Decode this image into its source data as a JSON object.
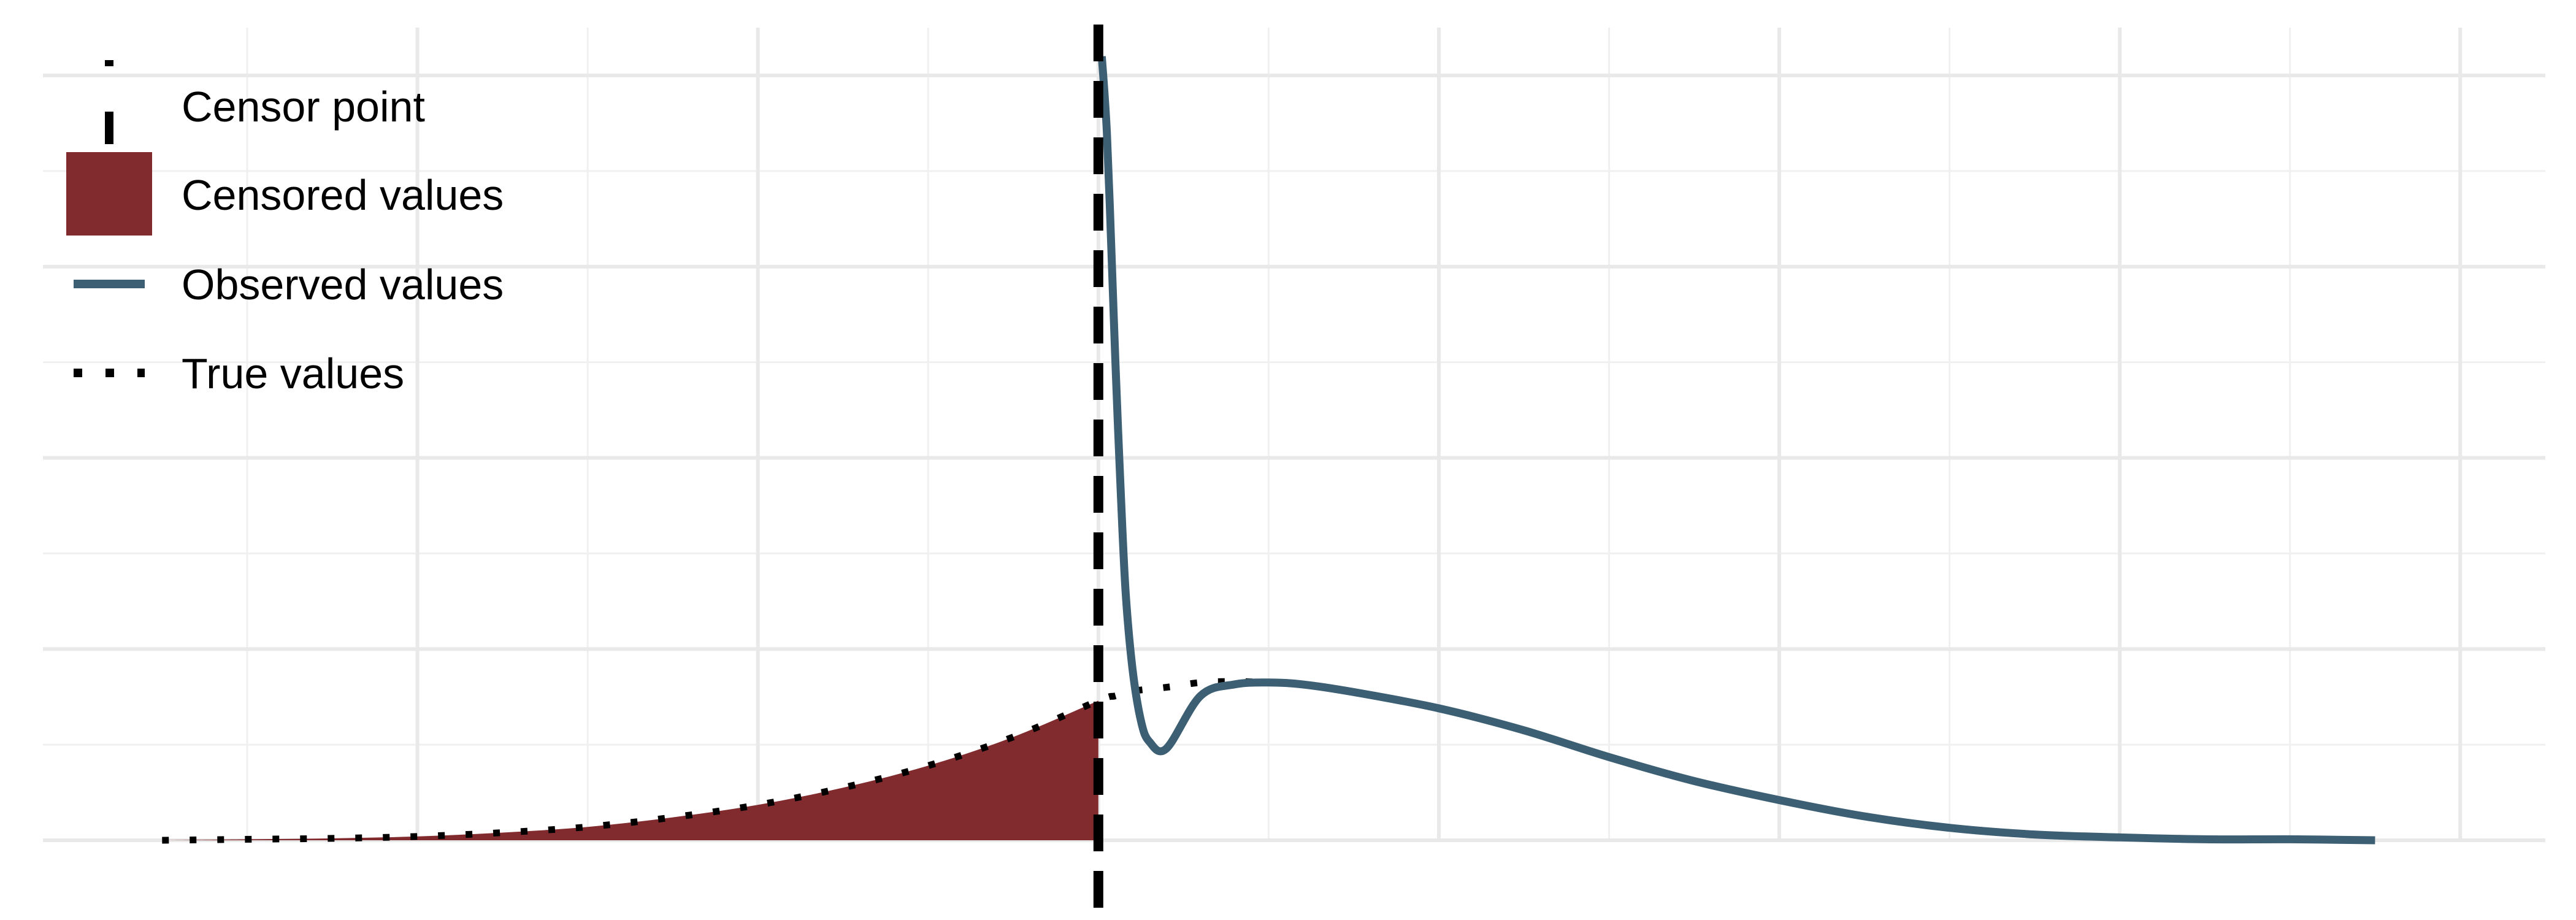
{
  "chart_data": {
    "type": "area",
    "title": "",
    "xlabel": "",
    "ylabel": "",
    "grid": true,
    "legend_placement": "top-left",
    "xlim": [
      -6.2,
      8.5
    ],
    "ylim": [
      0,
      0.085
    ],
    "censor_point": 0,
    "series": [
      {
        "name": "True values",
        "style": "dotted",
        "color": "#000000",
        "x": [
          -5.5,
          -5,
          -4.5,
          -4,
          -3.5,
          -3,
          -2.5,
          -2,
          -1.5,
          -1,
          -0.5,
          0,
          0.1,
          0.2,
          0.4,
          0.6,
          0.8,
          1,
          1.2,
          1.5,
          2,
          2.5,
          3,
          3.5,
          4,
          4.5,
          5,
          5.5,
          6,
          6.5,
          7,
          7.5
        ],
        "y": [
          0,
          0.0001,
          0.0002,
          0.0004,
          0.0008,
          0.0014,
          0.0024,
          0.0037,
          0.0055,
          0.0078,
          0.0108,
          0.0146,
          0.0151,
          0.0156,
          0.016,
          0.0165,
          0.0166,
          0.0165,
          0.0163,
          0.0155,
          0.0138,
          0.0115,
          0.0087,
          0.0062,
          0.0042,
          0.0025,
          0.0013,
          0.0006,
          0.0003,
          0.0001,
          0.0001,
          0
        ]
      },
      {
        "name": "Censored values",
        "style": "fill",
        "color": "#822B2F",
        "x": [
          -5.5,
          -5,
          -4.5,
          -4,
          -3.5,
          -3,
          -2.5,
          -2,
          -1.5,
          -1,
          -0.5,
          0
        ],
        "y": [
          0,
          0.0001,
          0.0002,
          0.0004,
          0.0008,
          0.0014,
          0.0024,
          0.0037,
          0.0055,
          0.0078,
          0.0108,
          0.0146
        ]
      },
      {
        "name": "Observed values",
        "style": "solid",
        "color": "#3D5F73",
        "x": [
          0.02,
          0.05,
          0.08,
          0.1,
          0.13,
          0.16,
          0.2,
          0.25,
          0.3,
          0.4,
          0.6,
          0.8,
          1,
          1.2,
          1.5,
          2,
          2.5,
          3,
          3.5,
          4,
          4.5,
          5,
          5.5,
          6,
          6.5,
          7,
          7.5
        ],
        "y": [
          0.082,
          0.074,
          0.06,
          0.05,
          0.037,
          0.026,
          0.018,
          0.0125,
          0.0103,
          0.0096,
          0.0151,
          0.0163,
          0.0165,
          0.0163,
          0.0155,
          0.0138,
          0.0115,
          0.0087,
          0.0062,
          0.0042,
          0.0025,
          0.0013,
          0.0006,
          0.0003,
          0.0001,
          0.0001,
          0
        ]
      },
      {
        "name": "Censor point",
        "style": "dashed",
        "color": "#000000"
      }
    ],
    "legend": [
      {
        "label": "Censor point",
        "key": "dashed-vline"
      },
      {
        "label": "Censored values",
        "key": "fill"
      },
      {
        "label": "Observed values",
        "key": "solid"
      },
      {
        "label": "True values",
        "key": "dotted"
      }
    ]
  },
  "colors": {
    "background": "#FFFFFF",
    "grid_major": "#E9E9E9",
    "grid_minor": "#F0F0F0",
    "censored_fill": "#822B2F",
    "observed_line": "#3D5F73",
    "true_line": "#000000",
    "censor_line": "#000000"
  }
}
